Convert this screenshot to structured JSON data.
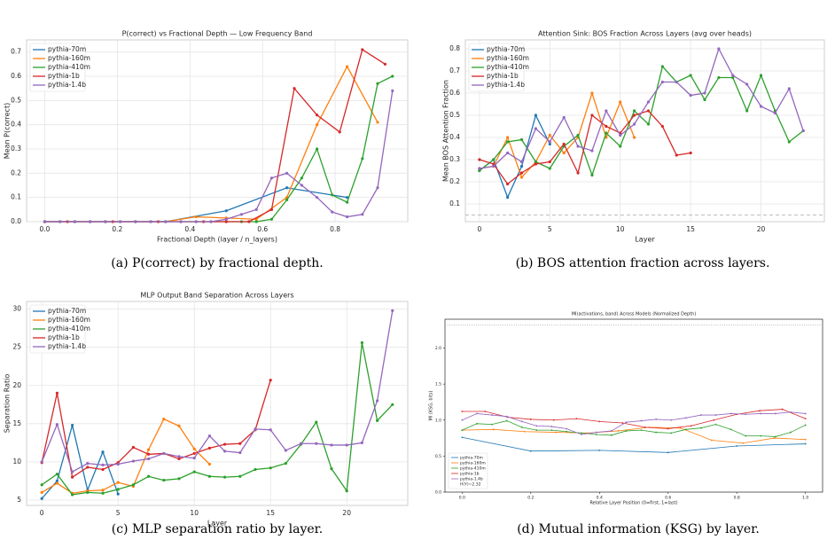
{
  "chart_data": [
    {
      "type": "line",
      "title": "P(correct) vs Fractional Depth — Low Frequency Band",
      "x_label": "Fractional Depth (layer / n_layers)",
      "y_label": "Mean P(correct)",
      "caption": "(a) P(correct) by fractional depth.",
      "grid": true,
      "legend": "upper left",
      "xlim": [
        -0.05,
        1.0
      ],
      "xticks": [
        {
          "value": 0,
          "label": "0.0"
        },
        0.2,
        0.4,
        0.6,
        0.8
      ],
      "ylim": [
        0,
        0.75
      ],
      "yticks": [
        {
          "value": 0,
          "label": "0.0"
        },
        0.1,
        0.2,
        0.3,
        0.4,
        0.5,
        0.6,
        0.7
      ],
      "series": [
        {
          "name": "pythia-70m",
          "color": "#1f77b4",
          "x": [
            0,
            0.167,
            0.333,
            0.5,
            0.667,
            0.833
          ],
          "values": [
            0,
            0,
            0,
            0.045,
            0.14,
            0.1
          ]
        },
        {
          "name": "pythia-160m",
          "color": "#ff7f0e",
          "x": [
            0,
            0.083,
            0.167,
            0.25,
            0.333,
            0.417,
            0.5,
            0.583,
            0.667,
            0.75,
            0.833,
            0.917
          ],
          "values": [
            0,
            0,
            0,
            0,
            0,
            0.02,
            0.015,
            0.01,
            0.1,
            0.4,
            0.64,
            0.41
          ]
        },
        {
          "name": "pythia-410m",
          "color": "#2ca02c",
          "x": [
            0,
            0.042,
            0.083,
            0.125,
            0.167,
            0.208,
            0.25,
            0.292,
            0.333,
            0.375,
            0.417,
            0.458,
            0.5,
            0.542,
            0.583,
            0.625,
            0.667,
            0.708,
            0.75,
            0.792,
            0.833,
            0.875,
            0.917,
            0.958
          ],
          "values": [
            0,
            0,
            0,
            0,
            0,
            0,
            0,
            0,
            0,
            0,
            0,
            0,
            0,
            0,
            0,
            0.01,
            0.09,
            0.18,
            0.3,
            0.11,
            0.08,
            0.26,
            0.57,
            0.6
          ]
        },
        {
          "name": "pythia-1b",
          "color": "#d62728",
          "x": [
            0,
            0.0625,
            0.125,
            0.1875,
            0.25,
            0.3125,
            0.375,
            0.4375,
            0.5,
            0.5625,
            0.625,
            0.6875,
            0.75,
            0.8125,
            0.875,
            0.9375
          ],
          "values": [
            0,
            0,
            0,
            0,
            0,
            0,
            0,
            0,
            0,
            0,
            0.05,
            0.55,
            0.44,
            0.37,
            0.71,
            0.65
          ]
        },
        {
          "name": "pythia-1.4b",
          "color": "#9467bd",
          "x": [
            0,
            0.042,
            0.083,
            0.125,
            0.167,
            0.208,
            0.25,
            0.292,
            0.333,
            0.375,
            0.417,
            0.458,
            0.5,
            0.542,
            0.583,
            0.625,
            0.667,
            0.708,
            0.75,
            0.792,
            0.833,
            0.875,
            0.917,
            0.958
          ],
          "values": [
            0,
            0,
            0,
            0,
            0,
            0,
            0,
            0,
            0,
            0,
            0,
            0,
            0.01,
            0.03,
            0.05,
            0.18,
            0.2,
            0.15,
            0.1,
            0.04,
            0.02,
            0.03,
            0.14,
            0.54
          ]
        }
      ]
    },
    {
      "type": "line",
      "title": "Attention Sink: BOS Fraction Across Layers (avg over heads)",
      "x_label": "Layer",
      "y_label": "Mean BOS Attention Fraction",
      "caption": "(b) BOS attention fraction across layers.",
      "grid": true,
      "legend": "upper left",
      "reference_line": 0.05,
      "xlim": [
        -1,
        24.5
      ],
      "xticks": [
        0,
        5,
        10,
        15,
        20
      ],
      "ylim": [
        0.02,
        0.84
      ],
      "yticks": [
        0.1,
        0.2,
        0.3,
        0.4,
        0.5,
        0.6,
        0.7,
        0.8
      ],
      "series": [
        {
          "name": "pythia-70m",
          "color": "#1f77b4",
          "x": [
            0,
            1,
            2,
            3,
            4,
            5
          ],
          "values": [
            0.25,
            0.3,
            0.13,
            0.27,
            0.5,
            0.37
          ]
        },
        {
          "name": "pythia-160m",
          "color": "#ff7f0e",
          "x": [
            0,
            1,
            2,
            3,
            4,
            5,
            6,
            7,
            8,
            9,
            10,
            11
          ],
          "values": [
            0.26,
            0.27,
            0.4,
            0.22,
            0.29,
            0.41,
            0.33,
            0.4,
            0.6,
            0.4,
            0.56,
            0.4
          ]
        },
        {
          "name": "pythia-410m",
          "color": "#2ca02c",
          "x": [
            0,
            1,
            2,
            3,
            4,
            5,
            6,
            7,
            8,
            9,
            10,
            11,
            12,
            13,
            14,
            15,
            16,
            17,
            18,
            19,
            20,
            21,
            22,
            23
          ],
          "values": [
            0.25,
            0.3,
            0.38,
            0.39,
            0.29,
            0.26,
            0.36,
            0.41,
            0.23,
            0.42,
            0.36,
            0.52,
            0.46,
            0.72,
            0.65,
            0.68,
            0.57,
            0.67,
            0.67,
            0.52,
            0.68,
            0.52,
            0.38,
            0.43
          ]
        },
        {
          "name": "pythia-1b",
          "color": "#d62728",
          "x": [
            0,
            1,
            2,
            3,
            4,
            5,
            6,
            7,
            8,
            9,
            10,
            11,
            12,
            13,
            14,
            15
          ],
          "values": [
            0.3,
            0.28,
            0.19,
            0.24,
            0.28,
            0.29,
            0.37,
            0.24,
            0.5,
            0.45,
            0.42,
            0.5,
            0.52,
            0.45,
            0.32,
            0.33
          ]
        },
        {
          "name": "pythia-1.4b",
          "color": "#9467bd",
          "x": [
            0,
            1,
            2,
            3,
            4,
            5,
            6,
            7,
            8,
            9,
            10,
            11,
            12,
            13,
            14,
            15,
            16,
            17,
            18,
            19,
            20,
            21,
            22,
            23
          ],
          "values": [
            0.26,
            0.27,
            0.33,
            0.29,
            0.44,
            0.38,
            0.49,
            0.36,
            0.34,
            0.52,
            0.41,
            0.46,
            0.56,
            0.65,
            0.65,
            0.59,
            0.6,
            0.8,
            0.68,
            0.64,
            0.54,
            0.51,
            0.62,
            0.43
          ]
        }
      ]
    },
    {
      "type": "line",
      "title": "MLP Output Band Separation Across Layers",
      "x_label": "Layer",
      "y_label": "Separation Ratio",
      "caption": "(c) MLP separation ratio by layer.",
      "grid": true,
      "legend": "upper left",
      "xlim": [
        -1,
        24
      ],
      "xticks": [
        0,
        5,
        10,
        15,
        20
      ],
      "ylim": [
        4.3,
        31
      ],
      "yticks": [
        5,
        10,
        15,
        20,
        25,
        30
      ],
      "series": [
        {
          "name": "pythia-70m",
          "color": "#1f77b4",
          "x": [
            0,
            1,
            2,
            3,
            4,
            5
          ],
          "values": [
            5.2,
            7.5,
            14.8,
            6.3,
            11.3,
            5.8
          ]
        },
        {
          "name": "pythia-160m",
          "color": "#ff7f0e",
          "x": [
            0,
            1,
            2,
            3,
            4,
            5,
            6,
            7,
            8,
            9,
            10,
            11
          ],
          "values": [
            6.0,
            7.2,
            5.9,
            6.2,
            6.3,
            7.3,
            6.8,
            11.6,
            15.6,
            14.7,
            11.7,
            9.7
          ]
        },
        {
          "name": "pythia-410m",
          "color": "#2ca02c",
          "x": [
            0,
            1,
            2,
            3,
            4,
            5,
            6,
            7,
            8,
            9,
            10,
            11,
            12,
            13,
            14,
            15,
            16,
            17,
            18,
            19,
            20,
            21,
            22,
            23
          ],
          "values": [
            7.0,
            8.4,
            5.7,
            6.0,
            5.9,
            6.4,
            7.0,
            8.1,
            7.6,
            7.8,
            8.7,
            8.1,
            8.0,
            8.1,
            9.0,
            9.2,
            9.8,
            12.3,
            15.2,
            9.1,
            6.2,
            25.6,
            15.4,
            17.5
          ]
        },
        {
          "name": "pythia-1b",
          "color": "#d62728",
          "x": [
            0,
            1,
            2,
            3,
            4,
            5,
            6,
            7,
            8,
            9,
            10,
            11,
            12,
            13,
            14,
            15
          ],
          "values": [
            9.9,
            19.0,
            8.0,
            9.3,
            9.0,
            9.9,
            11.9,
            11.0,
            11.1,
            10.4,
            11.1,
            11.8,
            12.3,
            12.4,
            14.2,
            20.7
          ]
        },
        {
          "name": "pythia-1.4b",
          "color": "#9467bd",
          "x": [
            0,
            1,
            2,
            3,
            4,
            5,
            6,
            7,
            8,
            9,
            10,
            11,
            12,
            13,
            14,
            15,
            16,
            17,
            18,
            19,
            20,
            21,
            22,
            23
          ],
          "values": [
            10.0,
            14.9,
            8.7,
            9.8,
            9.6,
            9.7,
            10.1,
            10.4,
            11.1,
            10.7,
            10.5,
            13.4,
            11.4,
            11.2,
            14.3,
            14.2,
            11.5,
            12.4,
            12.4,
            12.2,
            12.2,
            12.5,
            18.0,
            29.8
          ]
        }
      ]
    },
    {
      "type": "line",
      "title": "MI(activations, band) Across Models (Normalized Depth)",
      "x_label": "Relative Layer Position (0=first, 1=last)",
      "y_label": "MI (KSG, bits)",
      "caption": "(d) Mutual information (KSG) by layer.",
      "grid": false,
      "legend": "lower left",
      "reference_line": {
        "value": 2.32,
        "label": "H(Y)=2.32"
      },
      "xlim": [
        -0.05,
        1.05
      ],
      "xticks": [
        {
          "value": 0,
          "label": "0.0"
        },
        0.2,
        0.4,
        0.6,
        0.8,
        {
          "value": 1,
          "label": "1.0"
        }
      ],
      "ylim": [
        0,
        2.4
      ],
      "yticks": [
        {
          "value": 0,
          "label": "0.0"
        },
        0.5,
        {
          "value": 1,
          "label": "1.0"
        },
        1.5,
        {
          "value": 2,
          "label": "2.0"
        }
      ],
      "series": [
        {
          "name": "pythia-70m",
          "color": "#1f77b4",
          "x": [
            0,
            0.2,
            0.4,
            0.6,
            0.8,
            1
          ],
          "values": [
            0.76,
            0.57,
            0.58,
            0.55,
            0.64,
            0.67
          ]
        },
        {
          "name": "pythia-160m",
          "color": "#ff7f0e",
          "x": [
            0,
            0.091,
            0.182,
            0.273,
            0.364,
            0.455,
            0.545,
            0.636,
            0.727,
            0.818,
            0.909,
            1
          ],
          "values": [
            0.86,
            0.87,
            0.84,
            0.83,
            0.82,
            0.85,
            0.9,
            0.89,
            0.72,
            0.68,
            0.75,
            0.73
          ]
        },
        {
          "name": "pythia-410m",
          "color": "#2ca02c",
          "x": [
            0,
            0.043,
            0.087,
            0.13,
            0.174,
            0.217,
            0.261,
            0.304,
            0.348,
            0.391,
            0.435,
            0.478,
            0.522,
            0.565,
            0.609,
            0.652,
            0.696,
            0.739,
            0.783,
            0.826,
            0.87,
            0.913,
            0.957,
            1
          ],
          "values": [
            0.86,
            0.95,
            0.94,
            0.99,
            0.9,
            0.86,
            0.86,
            0.84,
            0.82,
            0.8,
            0.79,
            0.85,
            0.86,
            0.83,
            0.82,
            0.87,
            0.89,
            0.94,
            0.87,
            0.78,
            0.78,
            0.77,
            0.83,
            0.93
          ]
        },
        {
          "name": "pythia-1b",
          "color": "#d62728",
          "x": [
            0,
            0.067,
            0.133,
            0.2,
            0.267,
            0.333,
            0.4,
            0.467,
            0.533,
            0.6,
            0.667,
            0.733,
            0.8,
            0.867,
            0.933,
            1
          ],
          "values": [
            1.12,
            1.12,
            1.04,
            1.01,
            1.0,
            1.02,
            0.98,
            0.96,
            0.9,
            0.88,
            0.92,
            1.0,
            1.08,
            1.13,
            1.15,
            1.02
          ]
        },
        {
          "name": "pythia-1.4b",
          "color": "#9467bd",
          "x": [
            0,
            0.043,
            0.087,
            0.13,
            0.174,
            0.217,
            0.261,
            0.304,
            0.348,
            0.391,
            0.435,
            0.478,
            0.522,
            0.565,
            0.609,
            0.652,
            0.696,
            0.739,
            0.783,
            0.826,
            0.87,
            0.913,
            0.957,
            1
          ],
          "values": [
            1.0,
            1.09,
            1.07,
            1.05,
            0.98,
            0.92,
            0.91,
            0.88,
            0.8,
            0.83,
            0.85,
            0.97,
            0.99,
            1.01,
            1.0,
            1.03,
            1.07,
            1.07,
            1.09,
            1.08,
            1.09,
            1.09,
            1.11,
            1.09
          ]
        }
      ]
    }
  ]
}
